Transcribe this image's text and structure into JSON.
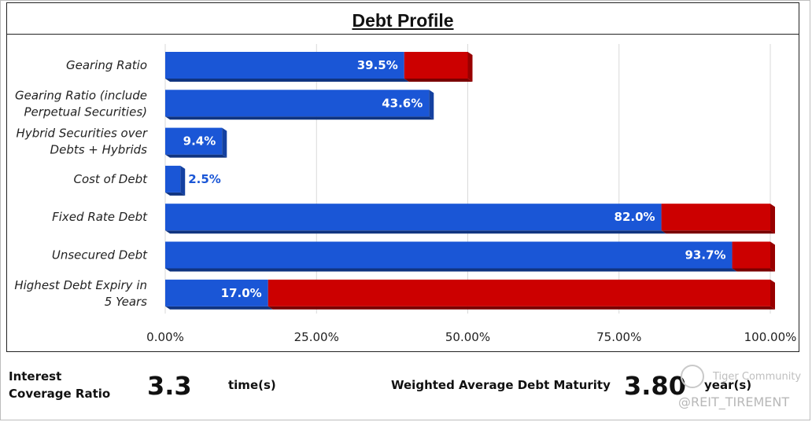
{
  "chart_data": {
    "type": "bar",
    "orientation": "horizontal",
    "stacked": true,
    "title": "Debt Profile",
    "categories": [
      [
        "Gearing Ratio"
      ],
      [
        "Gearing Ratio (include",
        "Perpetual Securities)"
      ],
      [
        "Hybrid Securities over",
        "Debts + Hybrids"
      ],
      [
        "Cost of Debt"
      ],
      [
        "Fixed Rate Debt"
      ],
      [
        "Unsecured Debt"
      ],
      [
        "Highest Debt Expiry in",
        "5 Years"
      ]
    ],
    "series": [
      {
        "color": "#1a56d6",
        "values": [
          39.5,
          43.6,
          9.4,
          2.5,
          82.0,
          93.7,
          17.0
        ]
      },
      {
        "color": "#cc0000",
        "values": [
          10.5,
          0,
          0,
          0,
          18.0,
          6.3,
          83.0
        ]
      }
    ],
    "data_labels": [
      "39.5%",
      "43.6%",
      "9.4%",
      "2.5%",
      "82.0%",
      "93.7%",
      "17.0%"
    ],
    "xlim": [
      0,
      100
    ],
    "xticks": [
      0,
      25,
      50,
      75,
      100
    ],
    "xtick_labels": [
      "0.00%",
      "25.00%",
      "50.00%",
      "75.00%",
      "100.00%"
    ],
    "grid": true
  },
  "footer": {
    "icr_label_line1": "Interest",
    "icr_label_line2": "Coverage Ratio",
    "icr_value": "3.3",
    "icr_unit": "time(s)",
    "wadm_label": "Weighted Average Debt Maturity",
    "wadm_value": "3.80",
    "wadm_unit": "year(s)"
  },
  "watermark": {
    "brand": "Tiger Community",
    "handle": "@REIT_TIREMENT"
  },
  "colors": {
    "blue": "#1a56d6",
    "red": "#cc0000",
    "grid": "#d9d9d9",
    "outside_label": "#1a56d6"
  }
}
